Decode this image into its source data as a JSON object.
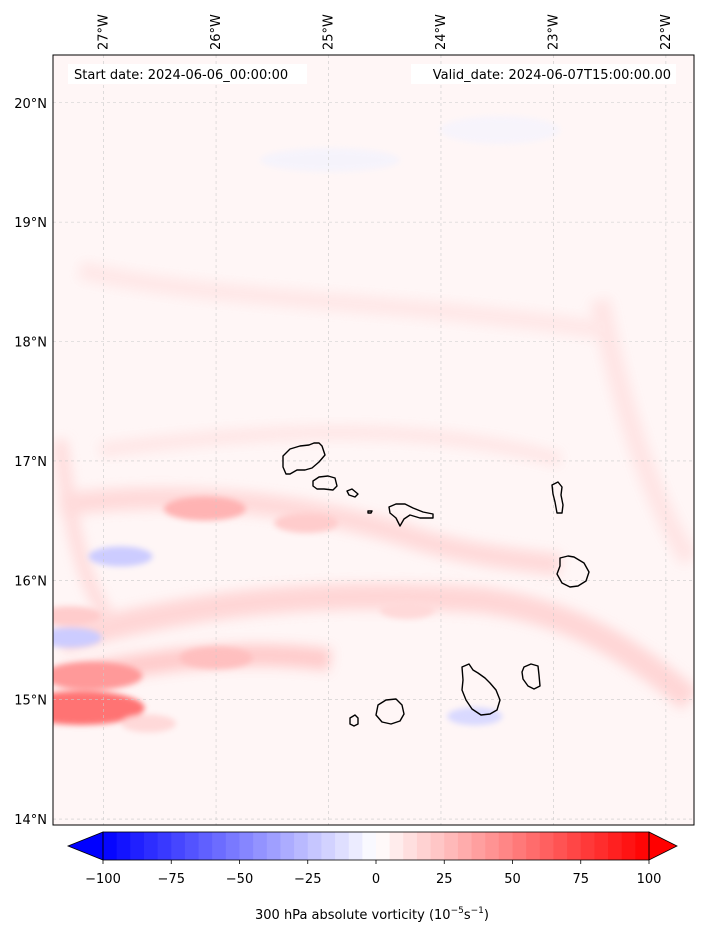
{
  "map": {
    "lon_range": [
      -27.45,
      -21.75
    ],
    "lat_range": [
      13.95,
      20.4
    ],
    "lon_ticks": [
      "27°W",
      "26°W",
      "25°W",
      "24°W",
      "23°W",
      "22°W"
    ],
    "lon_values": [
      -27,
      -26,
      -25,
      -24,
      -23,
      -22
    ],
    "lat_ticks": [
      "20°N",
      "19°N",
      "18°N",
      "17°N",
      "16°N",
      "15°N",
      "14°N"
    ],
    "lat_values": [
      20,
      19,
      18,
      17,
      16,
      15,
      14
    ],
    "start_date": "Start date: 2024-06-06_00:00:00",
    "valid_date": "Valid_date: 2024-06-07T15:00:00.00",
    "gridlines": true,
    "islands": [
      {
        "name": "Santo Antão"
      },
      {
        "name": "São Vicente"
      },
      {
        "name": "Santa Luzia"
      },
      {
        "name": "Branco"
      },
      {
        "name": "São Nicolau"
      },
      {
        "name": "Sal"
      },
      {
        "name": "Boa Vista"
      },
      {
        "name": "Maio"
      },
      {
        "name": "Santiago"
      },
      {
        "name": "Fogo"
      },
      {
        "name": "Brava"
      }
    ]
  },
  "colorbar": {
    "min": -100,
    "max": 100,
    "ticks": [
      "−100",
      "−75",
      "−50",
      "−25",
      "0",
      "25",
      "50",
      "75",
      "100"
    ],
    "tick_values": [
      -100,
      -75,
      -50,
      -25,
      0,
      25,
      50,
      75,
      100
    ],
    "label_main": "300 hPa absolute vorticity (10",
    "label_exp1": "−5",
    "label_mid": "s",
    "label_exp2": "−1",
    "label_end": ")",
    "colors": {
      "low": "#0000ff",
      "mid": "#ffffff",
      "high": "#ff0000"
    },
    "extend": "both"
  },
  "features": [
    {
      "lon": -26.1,
      "lat": 16.6,
      "value": 30
    },
    {
      "lon": -25.2,
      "lat": 16.48,
      "value": 20
    },
    {
      "lon": -27.1,
      "lat": 15.2,
      "value": 40
    },
    {
      "lon": -27.2,
      "lat": 14.93,
      "value": 55
    },
    {
      "lon": -26.0,
      "lat": 15.35,
      "value": 25
    },
    {
      "lon": -24.3,
      "lat": 15.75,
      "value": 15
    },
    {
      "lon": -27.3,
      "lat": 15.7,
      "value": 20
    },
    {
      "lon": -26.6,
      "lat": 14.8,
      "value": 15
    },
    {
      "lon": -27.3,
      "lat": 15.52,
      "value": -20
    },
    {
      "lon": -26.85,
      "lat": 16.2,
      "value": -20
    },
    {
      "lon": -23.7,
      "lat": 14.86,
      "value": -15
    }
  ]
}
